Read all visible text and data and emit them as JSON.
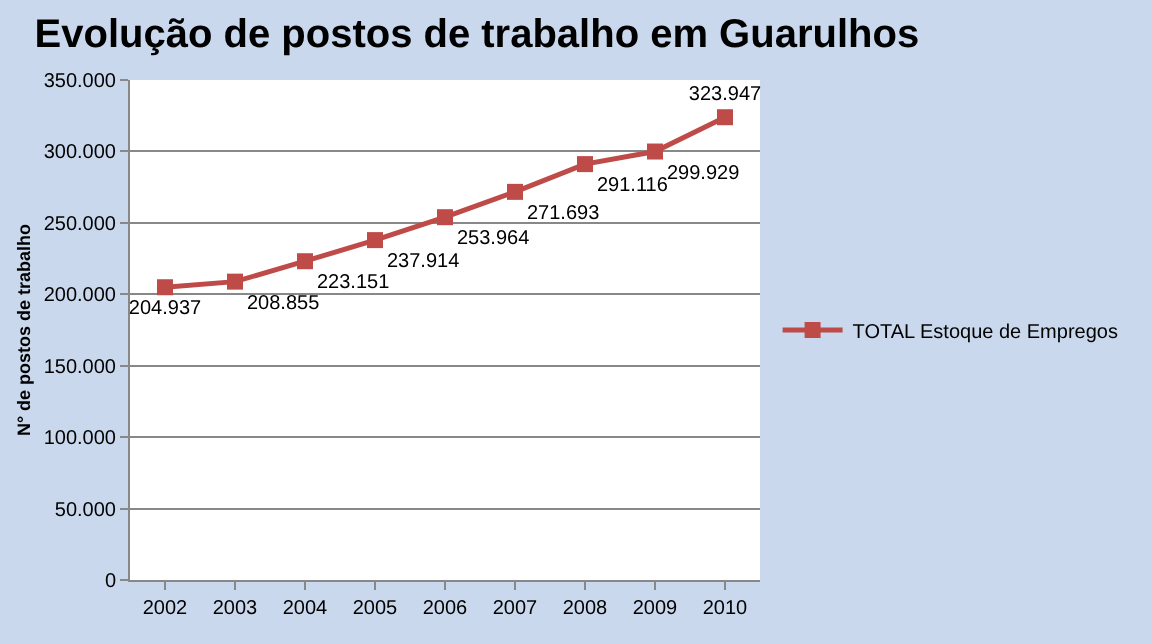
{
  "chart_data": {
    "type": "line",
    "title": "Evolução de postos de trabalho em Guarulhos",
    "ylabel": "N° de postos de trabalho",
    "categories": [
      "2002",
      "2003",
      "2004",
      "2005",
      "2006",
      "2007",
      "2008",
      "2009",
      "2010"
    ],
    "series": [
      {
        "name": "TOTAL Estoque de Empregos",
        "color": "#be4b48",
        "values": [
          204937,
          208855,
          223151,
          237914,
          253964,
          271693,
          291116,
          299929,
          323947
        ],
        "value_labels": [
          "204.937",
          "208.855",
          "223.151",
          "237.914",
          "253.964",
          "271.693",
          "291.116",
          "299.929",
          "323.947"
        ]
      }
    ],
    "ylim": [
      0,
      350000
    ],
    "yticks": [
      {
        "value": 0,
        "label": "0"
      },
      {
        "value": 50000,
        "label": "50.000"
      },
      {
        "value": 100000,
        "label": "100.000"
      },
      {
        "value": 150000,
        "label": "150.000"
      },
      {
        "value": 200000,
        "label": "200.000"
      },
      {
        "value": 250000,
        "label": "250.000"
      },
      {
        "value": 300000,
        "label": "300.000"
      },
      {
        "value": 350000,
        "label": "350.000"
      }
    ],
    "grid": "y",
    "legend": "right",
    "marker": "square",
    "line_style": "solid"
  }
}
